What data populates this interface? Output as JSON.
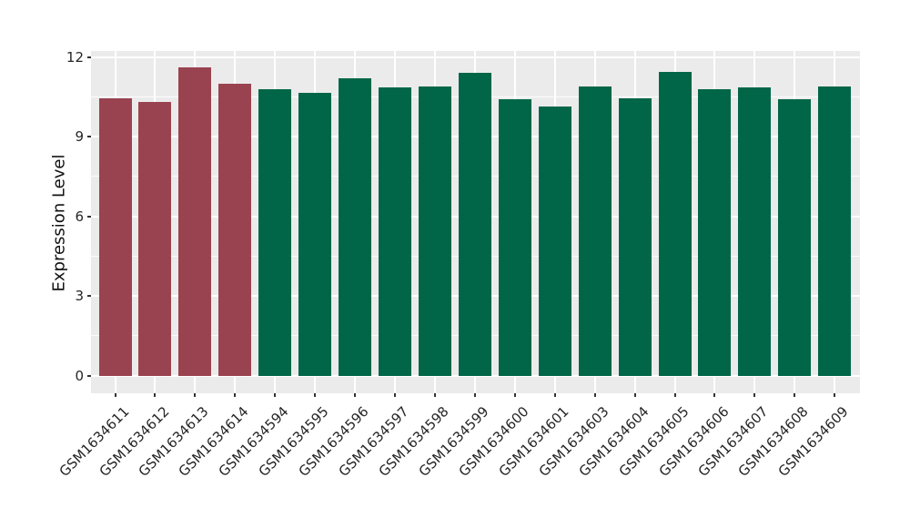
{
  "chart_data": {
    "type": "bar",
    "title": "",
    "xlabel": "",
    "ylabel": "Expression Level",
    "yticks_major": [
      0,
      3,
      6,
      9,
      12
    ],
    "yticks_minor": [
      1.5,
      4.5,
      7.5,
      10.5
    ],
    "ylim": [
      -0.66,
      12.23
    ],
    "grid": "on",
    "legend": "none",
    "panel_background": "#EBEBEB",
    "gridline_color": "#FFFFFF",
    "tick_color": "#333333",
    "palette": {
      "red": "#9A4350",
      "green": "#016647"
    },
    "categories": [
      "GSM1634611",
      "GSM1634612",
      "GSM1634613",
      "GSM1634614",
      "GSM1634594",
      "GSM1634595",
      "GSM1634596",
      "GSM1634597",
      "GSM1634598",
      "GSM1634599",
      "GSM1634600",
      "GSM1634601",
      "GSM1634603",
      "GSM1634604",
      "GSM1634605",
      "GSM1634606",
      "GSM1634607",
      "GSM1634608",
      "GSM1634609"
    ],
    "bars": [
      {
        "label": "GSM1634611",
        "value": 10.45,
        "color_key": "red"
      },
      {
        "label": "GSM1634612",
        "value": 10.3,
        "color_key": "red"
      },
      {
        "label": "GSM1634613",
        "value": 11.6,
        "color_key": "red"
      },
      {
        "label": "GSM1634614",
        "value": 11.0,
        "color_key": "red"
      },
      {
        "label": "GSM1634594",
        "value": 10.8,
        "color_key": "green"
      },
      {
        "label": "GSM1634595",
        "value": 10.65,
        "color_key": "green"
      },
      {
        "label": "GSM1634596",
        "value": 11.2,
        "color_key": "green"
      },
      {
        "label": "GSM1634597",
        "value": 10.85,
        "color_key": "green"
      },
      {
        "label": "GSM1634598",
        "value": 10.9,
        "color_key": "green"
      },
      {
        "label": "GSM1634599",
        "value": 11.4,
        "color_key": "green"
      },
      {
        "label": "GSM1634600",
        "value": 10.4,
        "color_key": "green"
      },
      {
        "label": "GSM1634601",
        "value": 10.15,
        "color_key": "green"
      },
      {
        "label": "GSM1634603",
        "value": 10.9,
        "color_key": "green"
      },
      {
        "label": "GSM1634604",
        "value": 10.45,
        "color_key": "green"
      },
      {
        "label": "GSM1634605",
        "value": 11.45,
        "color_key": "green"
      },
      {
        "label": "GSM1634606",
        "value": 10.8,
        "color_key": "green"
      },
      {
        "label": "GSM1634607",
        "value": 10.85,
        "color_key": "green"
      },
      {
        "label": "GSM1634608",
        "value": 10.4,
        "color_key": "green"
      },
      {
        "label": "GSM1634609",
        "value": 10.9,
        "color_key": "green"
      }
    ]
  }
}
